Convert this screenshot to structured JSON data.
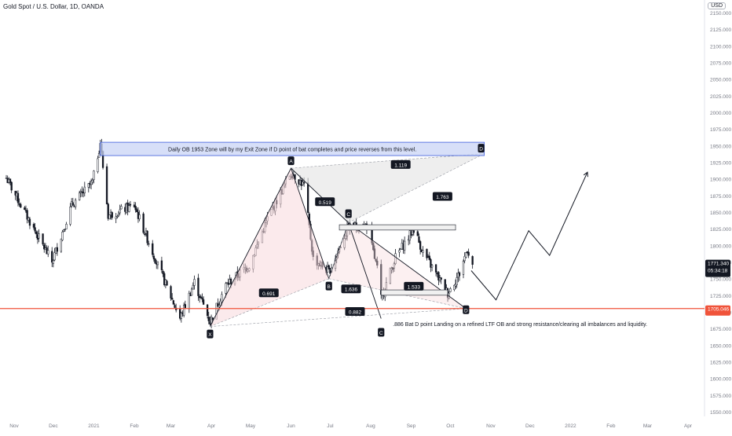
{
  "header": {
    "title": "Gold Spot / U.S. Dollar, 1D, OANDA",
    "currency": "USD"
  },
  "colors": {
    "up": "#131722",
    "down": "#131722",
    "support_line": "#f0533a",
    "price_tag": "#131722",
    "zone_fill": "#c9d4f5",
    "zone_border": "#3b5bdb",
    "bat_fill_left": "#f7d9dd",
    "bat_fill_right": "#e2e2e2"
  },
  "chart_data": {
    "type": "candlestick",
    "symbol": "Gold Spot / U.S. Dollar, 1D, OANDA",
    "y_axis": {
      "range": [
        1550,
        2150
      ],
      "ticks": [
        "2150.000",
        "2125.000",
        "2100.000",
        "2075.000",
        "2050.000",
        "2025.000",
        "2000.000",
        "1975.000",
        "1950.000",
        "1925.000",
        "1900.000",
        "1875.000",
        "1850.000",
        "1825.000",
        "1800.000",
        "1775.000",
        "1750.000",
        "1725.000",
        "1700.000",
        "1675.000",
        "1650.000",
        "1625.000",
        "1600.000",
        "1575.000",
        "1550.000"
      ]
    },
    "x_axis": {
      "months": [
        "Nov",
        "Dec",
        "2021",
        "Feb",
        "Mar",
        "Apr",
        "May",
        "Jun",
        "Jul",
        "Aug",
        "Sep",
        "Oct",
        "Nov",
        "Dec",
        "2022",
        "Feb",
        "Mar",
        "Apr"
      ]
    },
    "last_price": {
      "value": "1771.340",
      "countdown": "05:34:18"
    },
    "support_level": {
      "value": "1705.046"
    },
    "bat_pattern": {
      "points": [
        {
          "label": "X",
          "date": "2021-03-31",
          "price": 1678
        },
        {
          "label": "A",
          "date": "2021-06-01",
          "price": 1916
        },
        {
          "label": "B",
          "date": "2021-06-30",
          "price": 1750
        },
        {
          "label": "C",
          "date": "2021-07-15",
          "price": 1834
        },
        {
          "label": "C",
          "date": "2021-08-09",
          "price": 1690
        },
        {
          "label": "D",
          "date": "2021-10-13",
          "price": 1705
        }
      ],
      "ratios": [
        "1.119",
        "0.519",
        "1.763",
        "0.691",
        "1.636",
        "1.533",
        "0.882"
      ],
      "projected_D_label": "D"
    },
    "zone": {
      "low": 1935,
      "high": 1955,
      "text": "Daily OB 1953 Zone will by my Exit Zone if D point of bat completes and price reverses from this level."
    },
    "annotation": ".886 Bat D point Landing on a refined LTF OB and strong resistance/clearing all imbalances and liquidity.",
    "projection_path": [
      {
        "date": "2021-10-17",
        "price": 1762
      },
      {
        "date": "2021-11-05",
        "price": 1718
      },
      {
        "date": "2021-11-30",
        "price": 1822
      },
      {
        "date": "2021-12-16",
        "price": 1785
      },
      {
        "date": "2022-01-14",
        "price": 1910
      }
    ]
  }
}
